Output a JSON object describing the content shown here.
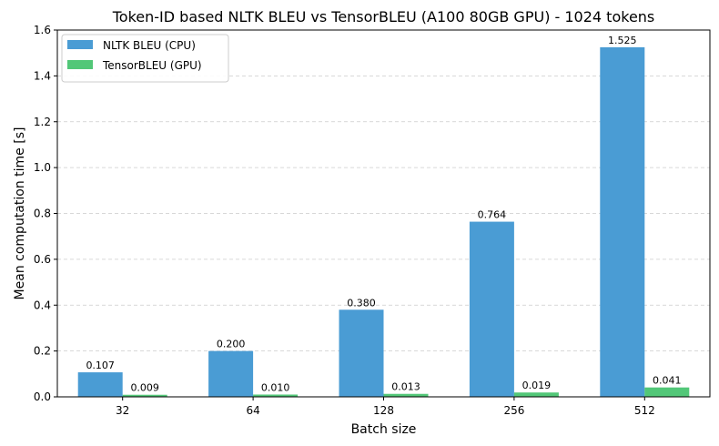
{
  "chart_data": {
    "type": "bar",
    "title": "Token-ID based NLTK BLEU vs TensorBLEU (A100 80GB GPU) - 1024 tokens",
    "xlabel": "Batch size",
    "ylabel": "Mean computation time [s]",
    "categories": [
      "32",
      "64",
      "128",
      "256",
      "512"
    ],
    "series": [
      {
        "name": "NLTK BLEU (CPU)",
        "color": "#4a9cd4",
        "values": [
          0.107,
          0.2,
          0.38,
          0.764,
          1.525
        ],
        "labels": [
          "0.107",
          "0.200",
          "0.380",
          "0.764",
          "1.525"
        ]
      },
      {
        "name": "TensorBLEU (GPU)",
        "color": "#52c778",
        "values": [
          0.009,
          0.01,
          0.013,
          0.019,
          0.041
        ],
        "labels": [
          "0.009",
          "0.010",
          "0.013",
          "0.019",
          "0.041"
        ]
      }
    ],
    "ylim": [
      0,
      1.6
    ],
    "yticks": [
      "0.0",
      "0.2",
      "0.4",
      "0.6",
      "0.8",
      "1.0",
      "1.2",
      "1.4",
      "1.6"
    ],
    "grid": "horizontal dashed",
    "legend_position": "top-left"
  }
}
